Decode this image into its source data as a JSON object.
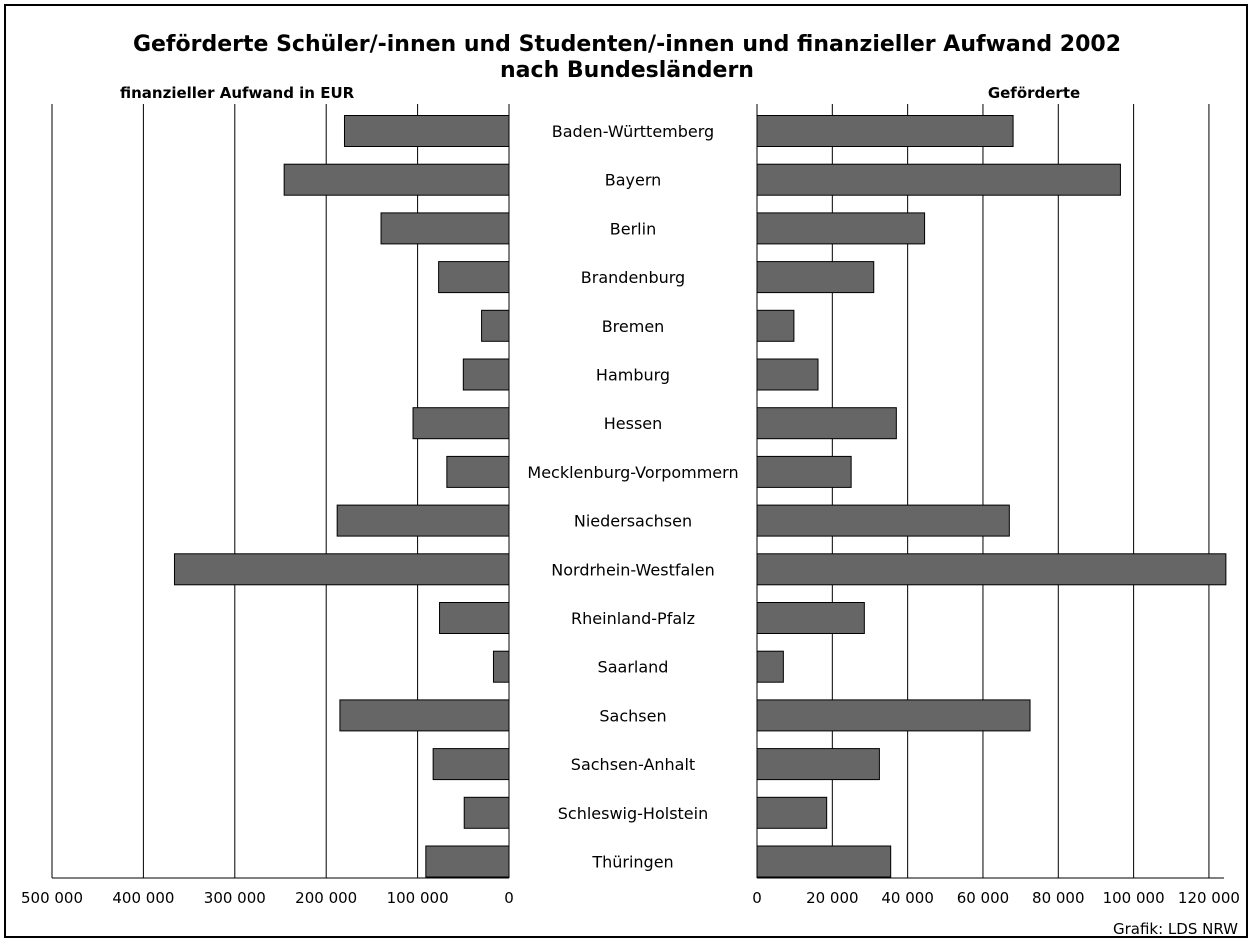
{
  "chart_data": {
    "type": "bar",
    "title_line1": "Geförderte Schüler/-innen und Studenten/-innen und finanzieller Aufwand 2002",
    "title_line2": "nach Bundesländern",
    "left_axis_title": "finanzieller Aufwand in EUR",
    "right_axis_title": "Geförderte",
    "source": "Grafik: LDS NRW",
    "categories": [
      "Baden-Württemberg",
      "Bayern",
      "Berlin",
      "Brandenburg",
      "Bremen",
      "Hamburg",
      "Hessen",
      "Mecklenburg-Vorpommern",
      "Niedersachsen",
      "Nordrhein-Westfalen",
      "Rheinland-Pfalz",
      "Saarland",
      "Sachsen",
      "Sachsen-Anhalt",
      "Schleswig-Holstein",
      "Thüringen"
    ],
    "series": [
      {
        "name": "finanzieller Aufwand in EUR",
        "values": [
          180000,
          246000,
          140000,
          77000,
          30000,
          50000,
          105000,
          68000,
          188000,
          366000,
          76000,
          17000,
          185000,
          83000,
          49000,
          91000
        ]
      },
      {
        "name": "Geförderte",
        "values": [
          68000,
          96500,
          44500,
          31000,
          9800,
          16200,
          37000,
          25000,
          67000,
          124500,
          28500,
          7000,
          72500,
          32500,
          18500,
          35500
        ]
      }
    ],
    "left_axis": {
      "min": 0,
      "max": 500000,
      "direction": "reversed",
      "ticks": [
        500000,
        400000,
        300000,
        200000,
        100000,
        0
      ],
      "tick_labels": [
        "500 000",
        "400 000",
        "300 000",
        "200 000",
        "100 000",
        "0"
      ]
    },
    "right_axis": {
      "min": 0,
      "max": 124000,
      "ticks": [
        0,
        20000,
        40000,
        60000,
        80000,
        100000,
        120000
      ],
      "tick_labels": [
        "0",
        "20 000",
        "40 000",
        "60 000",
        "80 000",
        "100 000",
        "120 000"
      ]
    },
    "grid": true,
    "bar_color": "#666666"
  }
}
